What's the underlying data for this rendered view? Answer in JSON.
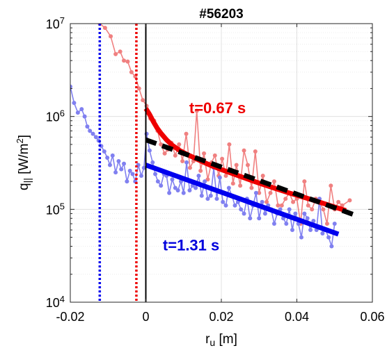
{
  "chart_data": {
    "type": "line",
    "title": "#56203",
    "xlabel": "r",
    "xlabel_sub": "u",
    "xlabel_unit": " [m]",
    "ylabel": "q",
    "ylabel_sub": "||",
    "ylabel_unit": " [W/m",
    "ylabel_sup": "2",
    "ylabel_close": "]",
    "xlim": [
      -0.02,
      0.06
    ],
    "ylim": [
      10000,
      10000000
    ],
    "yscale": "log",
    "grid": true,
    "x_ticks": [
      -0.02,
      0,
      0.02,
      0.04,
      0.06
    ],
    "x_tick_labels": [
      "-0.02",
      "0",
      "0.02",
      "0.04",
      "0.06"
    ],
    "y_ticks": [
      10000,
      100000,
      1000000,
      10000000
    ],
    "y_tick_base": "10",
    "y_tick_exponents": [
      "4",
      "5",
      "6",
      "7"
    ],
    "annotations": [
      {
        "text": "t=0.67 s",
        "x": 0.0115,
        "y": 1080000,
        "color": "#ee0000"
      },
      {
        "text": "t=1.31 s",
        "x": 0.0045,
        "y": 36000,
        "color": "#0000dd"
      }
    ],
    "vlines": [
      {
        "x": -0.0122,
        "style": "dotted",
        "color": "#0000ee"
      },
      {
        "x": -0.0025,
        "style": "dotted",
        "color": "#ee0000"
      },
      {
        "x": 0.0,
        "style": "solid",
        "color": "#000000"
      }
    ],
    "series": [
      {
        "color": "#f08080",
        "style": "line-dots",
        "x": [
          -0.0122,
          -0.0108,
          -0.0093,
          -0.008,
          -0.0068,
          -0.0058,
          -0.0048,
          -0.0038,
          -0.0028,
          -0.0018,
          -0.0008,
          0.0002,
          0.0012,
          0.0022,
          0.0031,
          0.004,
          0.005,
          0.0058,
          0.0068,
          0.0078,
          0.0088,
          0.0097,
          0.0107,
          0.0117,
          0.0126,
          0.0135,
          0.0145,
          0.0154,
          0.0164,
          0.0174,
          0.0183,
          0.0193,
          0.0202,
          0.0212,
          0.0221,
          0.0231,
          0.024,
          0.025,
          0.026,
          0.027,
          0.028,
          0.029,
          0.03,
          0.031,
          0.032,
          0.033,
          0.034,
          0.035,
          0.036,
          0.037,
          0.038,
          0.039,
          0.04,
          0.041,
          0.042,
          0.043,
          0.044,
          0.045,
          0.046,
          0.047,
          0.048,
          0.049,
          0.05,
          0.051,
          0.052,
          0.054
        ],
        "y": [
          10000000,
          9000000,
          7300000,
          4700000,
          5000000,
          4000000,
          3900000,
          3000000,
          2700000,
          2000000,
          1500000,
          1300000,
          950000,
          900000,
          700000,
          500000,
          400000,
          440000,
          520000,
          380000,
          500000,
          330000,
          650000,
          280000,
          330000,
          1150000,
          260000,
          400000,
          210000,
          320000,
          380000,
          230000,
          350000,
          230000,
          500000,
          190000,
          300000,
          180000,
          430000,
          300000,
          170000,
          420000,
          150000,
          230000,
          120000,
          150000,
          200000,
          110000,
          110000,
          130000,
          150000,
          120000,
          130000,
          70000,
          200000,
          110000,
          100000,
          130000,
          120000,
          100000,
          70000,
          180000,
          100000,
          120000,
          110000,
          125000
        ]
      },
      {
        "color": "#8080f0",
        "style": "line-dots",
        "x": [
          -0.02,
          -0.019,
          -0.018,
          -0.017,
          -0.0162,
          -0.0155,
          -0.0148,
          -0.014,
          -0.0132,
          -0.0125,
          -0.0118,
          -0.011,
          -0.0102,
          -0.0095,
          -0.0088,
          -0.008,
          -0.0072,
          -0.0065,
          -0.0058,
          -0.005,
          -0.0042,
          -0.0035,
          -0.0028,
          -0.002,
          -0.0012,
          -0.0005,
          0.0002,
          0.001,
          0.0018,
          0.0025,
          0.0032,
          0.004,
          0.0048,
          0.0055,
          0.0062,
          0.007,
          0.0078,
          0.0085,
          0.0093,
          0.01,
          0.0108,
          0.0116,
          0.0124,
          0.0132,
          0.014,
          0.0148,
          0.0156,
          0.0164,
          0.0172,
          0.018,
          0.0188,
          0.0196,
          0.0204,
          0.0212,
          0.022,
          0.0228,
          0.0236,
          0.0244,
          0.0252,
          0.026,
          0.0268,
          0.0276,
          0.0284,
          0.0292,
          0.03,
          0.0308,
          0.0316,
          0.0324,
          0.0332,
          0.034,
          0.0348,
          0.0356,
          0.0364,
          0.0372,
          0.038,
          0.0388,
          0.0396,
          0.0404,
          0.0412,
          0.042,
          0.0428,
          0.0436,
          0.0444,
          0.0452,
          0.046,
          0.0468,
          0.0476,
          0.0484,
          0.0492,
          0.05
        ],
        "y": [
          2100000,
          1400000,
          1100000,
          1200000,
          1000000,
          780000,
          700000,
          650000,
          600000,
          550000,
          480000,
          420000,
          360000,
          300000,
          380000,
          250000,
          330000,
          270000,
          310000,
          200000,
          260000,
          240000,
          200000,
          300000,
          230000,
          280000,
          650000,
          430000,
          320000,
          240000,
          200000,
          180000,
          240000,
          230000,
          150000,
          210000,
          170000,
          160000,
          200000,
          150000,
          320000,
          160000,
          180000,
          170000,
          230000,
          140000,
          200000,
          130000,
          140000,
          280000,
          130000,
          220000,
          120000,
          110000,
          170000,
          140000,
          110000,
          120000,
          100000,
          90000,
          130000,
          80000,
          110000,
          150000,
          80000,
          120000,
          90000,
          110000,
          100000,
          70000,
          90000,
          100000,
          80000,
          70000,
          100000,
          60000,
          90000,
          70000,
          50000,
          90000,
          80000,
          60000,
          75000,
          60000,
          130000,
          55000,
          60000,
          50000,
          40000,
          70000
        ]
      },
      {
        "color": "#ee0000",
        "style": "fit",
        "width": 7,
        "x": [
          0.0,
          0.001,
          0.002,
          0.003,
          0.004,
          0.0055,
          0.007,
          0.009,
          0.0115,
          0.014,
          0.017,
          0.02,
          0.023,
          0.026,
          0.029,
          0.032,
          0.035,
          0.038,
          0.041,
          0.044,
          0.047,
          0.05,
          0.053
        ],
        "y": [
          1220000,
          1050000,
          880000,
          750000,
          660000,
          560000,
          490000,
          430000,
          380000,
          340000,
          300000,
          268000,
          242000,
          219000,
          198000,
          180000,
          164000,
          150000,
          138000,
          127000,
          116000,
          106000,
          97000
        ]
      },
      {
        "color": "#000000",
        "style": "fit-dashed",
        "width": 7,
        "x": [
          0.0,
          0.055
        ],
        "y": [
          560000,
          88000
        ]
      },
      {
        "color": "#0000ee",
        "style": "fit",
        "width": 7,
        "x": [
          0.0,
          0.051
        ],
        "y": [
          300000,
          54000
        ]
      }
    ]
  }
}
